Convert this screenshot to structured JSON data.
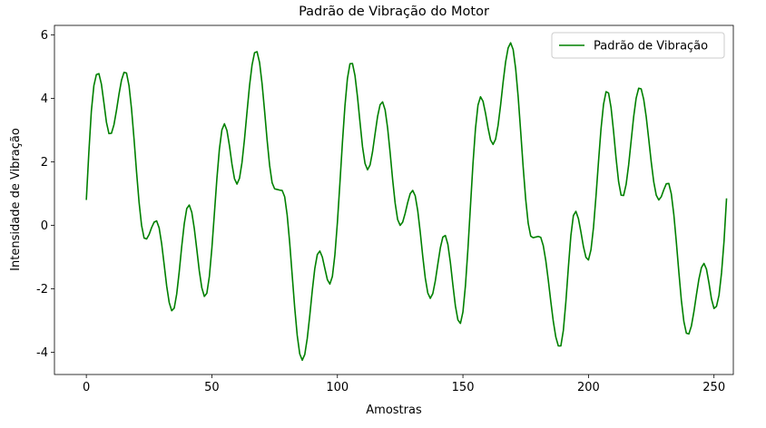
{
  "chart_data": {
    "type": "line",
    "title": "Padrão de Vibração do Motor",
    "xlabel": "Amostras",
    "ylabel": "Intensidade de Vibração",
    "legend": "upper right",
    "grid": false,
    "xlim": [
      -12.7,
      257.7
    ],
    "ylim": [
      -4.7,
      6.3
    ],
    "xticks": [
      0,
      50,
      100,
      150,
      200,
      250
    ],
    "yticks": [
      -4,
      -2,
      0,
      2,
      4,
      6
    ],
    "x": [
      0,
      1,
      2,
      3,
      4,
      5,
      6,
      7,
      8,
      9,
      10,
      11,
      12,
      13,
      14,
      15,
      16,
      17,
      18,
      19,
      20,
      21,
      22,
      23,
      24,
      25,
      26,
      27,
      28,
      29,
      30,
      31,
      32,
      33,
      34,
      35,
      36,
      37,
      38,
      39,
      40,
      41,
      42,
      43,
      44,
      45,
      46,
      47,
      48,
      49,
      50,
      51,
      52,
      53,
      54,
      55,
      56,
      57,
      58,
      59,
      60,
      61,
      62,
      63,
      64,
      65,
      66,
      67,
      68,
      69,
      70,
      71,
      72,
      73,
      74,
      75,
      76,
      77,
      78,
      79,
      80,
      81,
      82,
      83,
      84,
      85,
      86,
      87,
      88,
      89,
      90,
      91,
      92,
      93,
      94,
      95,
      96,
      97,
      98,
      99,
      100,
      101,
      102,
      103,
      104,
      105,
      106,
      107,
      108,
      109,
      110,
      111,
      112,
      113,
      114,
      115,
      116,
      117,
      118,
      119,
      120,
      121,
      122,
      123,
      124,
      125,
      126,
      127,
      128,
      129,
      130,
      131,
      132,
      133,
      134,
      135,
      136,
      137,
      138,
      139,
      140,
      141,
      142,
      143,
      144,
      145,
      146,
      147,
      148,
      149,
      150,
      151,
      152,
      153,
      154,
      155,
      156,
      157,
      158,
      159,
      160,
      161,
      162,
      163,
      164,
      165,
      166,
      167,
      168,
      169,
      170,
      171,
      172,
      173,
      174,
      175,
      176,
      177,
      178,
      179,
      180,
      181,
      182,
      183,
      184,
      185,
      186,
      187,
      188,
      189,
      190,
      191,
      192,
      193,
      194,
      195,
      196,
      197,
      198,
      199,
      200,
      201,
      202,
      203,
      204,
      205,
      206,
      207,
      208,
      209,
      210,
      211,
      212,
      213,
      214,
      215,
      216,
      217,
      218,
      219,
      220,
      221,
      222,
      223,
      224,
      225,
      226,
      227,
      228,
      229,
      230,
      231,
      232,
      233,
      234,
      235,
      236,
      237,
      238,
      239,
      240,
      241,
      242,
      243,
      244,
      245,
      246,
      247,
      248,
      249,
      250,
      251,
      252,
      253,
      254,
      255
    ],
    "series": [
      {
        "name": "Padrão de Vibração",
        "color": "#008000",
        "values": [
          0.8,
          2.3,
          3.6,
          4.4,
          4.75,
          4.78,
          4.45,
          3.86,
          3.25,
          2.89,
          2.9,
          3.17,
          3.62,
          4.13,
          4.57,
          4.82,
          4.8,
          4.4,
          3.67,
          2.72,
          1.68,
          0.73,
          0,
          -0.4,
          -0.43,
          -0.29,
          -0.07,
          0.1,
          0.14,
          -0.08,
          -0.58,
          -1.24,
          -1.91,
          -2.43,
          -2.69,
          -2.61,
          -2.16,
          -1.46,
          -0.66,
          0.05,
          0.53,
          0.64,
          0.41,
          -0.1,
          -0.76,
          -1.44,
          -1.97,
          -2.24,
          -2.14,
          -1.61,
          -0.72,
          0.37,
          1.47,
          2.4,
          3.01,
          3.2,
          2.99,
          2.51,
          1.93,
          1.47,
          1.3,
          1.48,
          1.98,
          2.72,
          3.57,
          4.4,
          5.05,
          5.44,
          5.47,
          5.13,
          4.46,
          3.6,
          2.69,
          1.89,
          1.34,
          1.15,
          1.13,
          1.11,
          1.1,
          0.9,
          0.32,
          -0.55,
          -1.58,
          -2.6,
          -3.47,
          -4.05,
          -4.25,
          -4.07,
          -3.56,
          -2.84,
          -2.05,
          -1.36,
          -0.92,
          -0.81,
          -1,
          -1.36,
          -1.71,
          -1.85,
          -1.61,
          -0.93,
          0.09,
          1.33,
          2.61,
          3.76,
          4.63,
          5.09,
          5.1,
          4.72,
          4.05,
          3.25,
          2.48,
          1.95,
          1.75,
          1.9,
          2.32,
          2.88,
          3.43,
          3.8,
          3.89,
          3.64,
          3.07,
          2.29,
          1.44,
          0.7,
          0.18,
          0,
          0.1,
          0.38,
          0.72,
          1,
          1.1,
          0.93,
          0.46,
          -0.22,
          -0.98,
          -1.66,
          -2.13,
          -2.3,
          -2.15,
          -1.75,
          -1.22,
          -0.71,
          -0.37,
          -0.32,
          -0.6,
          -1.17,
          -1.88,
          -2.54,
          -2.98,
          -3.09,
          -2.73,
          -1.9,
          -0.73,
          0.61,
          1.94,
          3.05,
          3.79,
          4.05,
          3.91,
          3.53,
          3.07,
          2.69,
          2.55,
          2.71,
          3.15,
          3.79,
          4.51,
          5.15,
          5.59,
          5.75,
          5.54,
          4.94,
          4.05,
          2.96,
          1.83,
          0.82,
          0.06,
          -0.34,
          -0.39,
          -0.37,
          -0.35,
          -0.38,
          -0.64,
          -1.11,
          -1.73,
          -2.4,
          -3.03,
          -3.52,
          -3.8,
          -3.8,
          -3.31,
          -2.41,
          -1.32,
          -0.32,
          0.31,
          0.44,
          0.21,
          -0.21,
          -0.67,
          -1.01,
          -1.09,
          -0.77,
          -0.07,
          0.92,
          2.01,
          3.04,
          3.81,
          4.21,
          4.17,
          3.71,
          2.96,
          2.11,
          1.38,
          0.95,
          0.94,
          1.29,
          1.9,
          2.66,
          3.42,
          4.01,
          4.32,
          4.3,
          3.97,
          3.42,
          2.72,
          2,
          1.37,
          0.95,
          0.8,
          0.9,
          1.12,
          1.31,
          1.32,
          0.99,
          0.34,
          -0.53,
          -1.47,
          -2.36,
          -3.03,
          -3.4,
          -3.42,
          -3.17,
          -2.72,
          -2.19,
          -1.69,
          -1.33,
          -1.2,
          -1.38,
          -1.82,
          -2.32,
          -2.62,
          -2.55,
          -2.2,
          -1.5,
          -0.5,
          0.85
        ]
      }
    ]
  }
}
